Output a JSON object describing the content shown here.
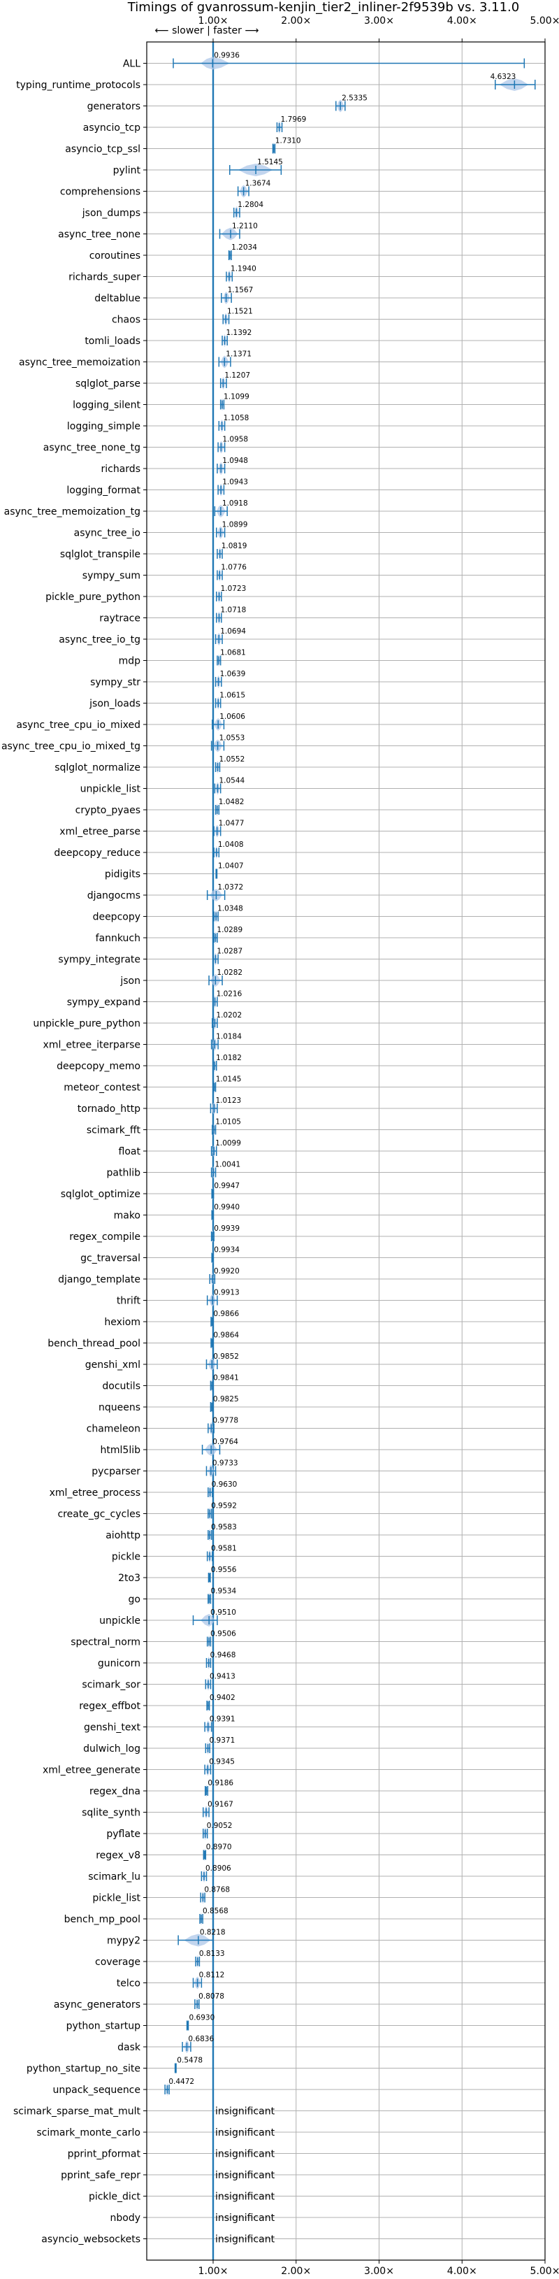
{
  "chart_data": {
    "type": "scatter",
    "title": "Timings of gvanrossum-kenjin_tier2_inliner-2f9539b vs. 3.11.0",
    "direction_label": "⟵ slower  |  faster ⟶",
    "x_ticks": [
      "1.00×",
      "2.00×",
      "3.00×",
      "4.00×",
      "5.00×"
    ],
    "xlim": [
      0.2,
      5.0
    ],
    "reference_line": 1.0,
    "grid": true,
    "colors": {
      "line": "#1f77b4",
      "violin": "#aec7e8",
      "grid": "#b0b0b0"
    },
    "insignificant_label": "insignificant",
    "benchmarks": [
      {
        "name": "ALL",
        "value": 0.9936,
        "label": "0.9936",
        "lo": 0.52,
        "hi": 4.75,
        "vlo": 0.85,
        "vhi": 1.2
      },
      {
        "name": "typing_runtime_protocols",
        "value": 4.6323,
        "label": "4.6323",
        "lo": 4.4,
        "hi": 4.88,
        "vlo": 4.45,
        "vhi": 4.8
      },
      {
        "name": "generators",
        "value": 2.5335,
        "label": "2.5335",
        "lo": 2.48,
        "hi": 2.59,
        "vlo": 2.49,
        "vhi": 2.58
      },
      {
        "name": "asyncio_tcp",
        "value": 1.7969,
        "label": "1.7969",
        "lo": 1.77,
        "hi": 1.83,
        "vlo": 1.78,
        "vhi": 1.82
      },
      {
        "name": "asyncio_tcp_ssl",
        "value": 1.731,
        "label": "1.7310",
        "lo": 1.72,
        "hi": 1.745,
        "vlo": 1.722,
        "vhi": 1.74
      },
      {
        "name": "pylint",
        "value": 1.5145,
        "label": "1.5145",
        "lo": 1.2,
        "hi": 1.82,
        "vlo": 1.3,
        "vhi": 1.72
      },
      {
        "name": "comprehensions",
        "value": 1.3674,
        "label": "1.3674",
        "lo": 1.3,
        "hi": 1.43,
        "vlo": 1.32,
        "vhi": 1.42
      },
      {
        "name": "json_dumps",
        "value": 1.2804,
        "label": "1.2804",
        "lo": 1.25,
        "hi": 1.32,
        "vlo": 1.26,
        "vhi": 1.31
      },
      {
        "name": "async_tree_none",
        "value": 1.211,
        "label": "1.2110",
        "lo": 1.08,
        "hi": 1.32,
        "vlo": 1.1,
        "vhi": 1.3
      },
      {
        "name": "coroutines",
        "value": 1.2034,
        "label": "1.2034",
        "lo": 1.19,
        "hi": 1.22,
        "vlo": 1.195,
        "vhi": 1.215
      },
      {
        "name": "richards_super",
        "value": 1.194,
        "label": "1.1940",
        "lo": 1.16,
        "hi": 1.23,
        "vlo": 1.17,
        "vhi": 1.22
      },
      {
        "name": "deltablue",
        "value": 1.1567,
        "label": "1.1567",
        "lo": 1.1,
        "hi": 1.22,
        "vlo": 1.12,
        "vhi": 1.2
      },
      {
        "name": "chaos",
        "value": 1.1521,
        "label": "1.1521",
        "lo": 1.12,
        "hi": 1.19,
        "vlo": 1.13,
        "vhi": 1.18
      },
      {
        "name": "tomli_loads",
        "value": 1.1392,
        "label": "1.1392",
        "lo": 1.11,
        "hi": 1.17,
        "vlo": 1.12,
        "vhi": 1.16
      },
      {
        "name": "async_tree_memoization",
        "value": 1.1371,
        "label": "1.1371",
        "lo": 1.07,
        "hi": 1.21,
        "vlo": 1.09,
        "vhi": 1.19
      },
      {
        "name": "sqlglot_parse",
        "value": 1.1207,
        "label": "1.1207",
        "lo": 1.09,
        "hi": 1.16,
        "vlo": 1.1,
        "vhi": 1.15
      },
      {
        "name": "logging_silent",
        "value": 1.1099,
        "label": "1.1099",
        "lo": 1.09,
        "hi": 1.13,
        "vlo": 1.095,
        "vhi": 1.125
      },
      {
        "name": "logging_simple",
        "value": 1.1058,
        "label": "1.1058",
        "lo": 1.07,
        "hi": 1.14,
        "vlo": 1.08,
        "vhi": 1.13
      },
      {
        "name": "async_tree_none_tg",
        "value": 1.0958,
        "label": "1.0958",
        "lo": 1.06,
        "hi": 1.14,
        "vlo": 1.07,
        "vhi": 1.13
      },
      {
        "name": "richards",
        "value": 1.0948,
        "label": "1.0948",
        "lo": 1.05,
        "hi": 1.14,
        "vlo": 1.06,
        "vhi": 1.13
      },
      {
        "name": "logging_format",
        "value": 1.0943,
        "label": "1.0943",
        "lo": 1.06,
        "hi": 1.13,
        "vlo": 1.07,
        "vhi": 1.12
      },
      {
        "name": "async_tree_memoization_tg",
        "value": 1.0918,
        "label": "1.0918",
        "lo": 1.02,
        "hi": 1.17,
        "vlo": 1.04,
        "vhi": 1.15
      },
      {
        "name": "async_tree_io",
        "value": 1.0899,
        "label": "1.0899",
        "lo": 1.04,
        "hi": 1.14,
        "vlo": 1.05,
        "vhi": 1.13
      },
      {
        "name": "sqlglot_transpile",
        "value": 1.0819,
        "label": "1.0819",
        "lo": 1.05,
        "hi": 1.11,
        "vlo": 1.06,
        "vhi": 1.1
      },
      {
        "name": "sympy_sum",
        "value": 1.0776,
        "label": "1.0776",
        "lo": 1.05,
        "hi": 1.11,
        "vlo": 1.06,
        "vhi": 1.1
      },
      {
        "name": "pickle_pure_python",
        "value": 1.0723,
        "label": "1.0723",
        "lo": 1.04,
        "hi": 1.1,
        "vlo": 1.05,
        "vhi": 1.09
      },
      {
        "name": "raytrace",
        "value": 1.0718,
        "label": "1.0718",
        "lo": 1.04,
        "hi": 1.1,
        "vlo": 1.05,
        "vhi": 1.09
      },
      {
        "name": "async_tree_io_tg",
        "value": 1.0694,
        "label": "1.0694",
        "lo": 1.03,
        "hi": 1.11,
        "vlo": 1.04,
        "vhi": 1.1
      },
      {
        "name": "mdp",
        "value": 1.0681,
        "label": "1.0681",
        "lo": 1.05,
        "hi": 1.09,
        "vlo": 1.055,
        "vhi": 1.085
      },
      {
        "name": "sympy_str",
        "value": 1.0639,
        "label": "1.0639",
        "lo": 1.03,
        "hi": 1.1,
        "vlo": 1.04,
        "vhi": 1.09
      },
      {
        "name": "json_loads",
        "value": 1.0615,
        "label": "1.0615",
        "lo": 1.03,
        "hi": 1.09,
        "vlo": 1.04,
        "vhi": 1.08
      },
      {
        "name": "async_tree_cpu_io_mixed",
        "value": 1.0606,
        "label": "1.0606",
        "lo": 0.99,
        "hi": 1.13,
        "vlo": 1.01,
        "vhi": 1.11
      },
      {
        "name": "async_tree_cpu_io_mixed_tg",
        "value": 1.0553,
        "label": "1.0553",
        "lo": 0.98,
        "hi": 1.13,
        "vlo": 1.0,
        "vhi": 1.11
      },
      {
        "name": "sqlglot_normalize",
        "value": 1.0552,
        "label": "1.0552",
        "lo": 1.03,
        "hi": 1.08,
        "vlo": 1.035,
        "vhi": 1.075
      },
      {
        "name": "unpickle_list",
        "value": 1.0544,
        "label": "1.0544",
        "lo": 1.02,
        "hi": 1.09,
        "vlo": 1.03,
        "vhi": 1.08
      },
      {
        "name": "crypto_pyaes",
        "value": 1.0482,
        "label": "1.0482",
        "lo": 1.03,
        "hi": 1.07,
        "vlo": 1.035,
        "vhi": 1.065
      },
      {
        "name": "xml_etree_parse",
        "value": 1.0477,
        "label": "1.0477",
        "lo": 1.01,
        "hi": 1.09,
        "vlo": 1.02,
        "vhi": 1.08
      },
      {
        "name": "deepcopy_reduce",
        "value": 1.0408,
        "label": "1.0408",
        "lo": 1.01,
        "hi": 1.07,
        "vlo": 1.02,
        "vhi": 1.06
      },
      {
        "name": "pidigits",
        "value": 1.0407,
        "label": "1.0407",
        "lo": 1.035,
        "hi": 1.046,
        "vlo": 1.037,
        "vhi": 1.044
      },
      {
        "name": "djangocms",
        "value": 1.0372,
        "label": "1.0372",
        "lo": 0.93,
        "hi": 1.14,
        "vlo": 0.96,
        "vhi": 1.11
      },
      {
        "name": "deepcopy",
        "value": 1.0348,
        "label": "1.0348",
        "lo": 1.01,
        "hi": 1.06,
        "vlo": 1.015,
        "vhi": 1.055
      },
      {
        "name": "fannkuch",
        "value": 1.0289,
        "label": "1.0289",
        "lo": 1.01,
        "hi": 1.05,
        "vlo": 1.015,
        "vhi": 1.045
      },
      {
        "name": "sympy_integrate",
        "value": 1.0287,
        "label": "1.0287",
        "lo": 1.0,
        "hi": 1.06,
        "vlo": 1.01,
        "vhi": 1.05
      },
      {
        "name": "json",
        "value": 1.0282,
        "label": "1.0282",
        "lo": 0.95,
        "hi": 1.11,
        "vlo": 0.97,
        "vhi": 1.09
      },
      {
        "name": "sympy_expand",
        "value": 1.0216,
        "label": "1.0216",
        "lo": 1.0,
        "hi": 1.05,
        "vlo": 1.005,
        "vhi": 1.04
      },
      {
        "name": "unpickle_pure_python",
        "value": 1.0202,
        "label": "1.0202",
        "lo": 0.99,
        "hi": 1.05,
        "vlo": 1.0,
        "vhi": 1.04
      },
      {
        "name": "xml_etree_iterparse",
        "value": 1.0184,
        "label": "1.0184",
        "lo": 0.98,
        "hi": 1.06,
        "vlo": 0.99,
        "vhi": 1.05
      },
      {
        "name": "deepcopy_memo",
        "value": 1.0182,
        "label": "1.0182",
        "lo": 1.0,
        "hi": 1.04,
        "vlo": 1.005,
        "vhi": 1.035
      },
      {
        "name": "meteor_contest",
        "value": 1.0145,
        "label": "1.0145",
        "lo": 1.0,
        "hi": 1.03,
        "vlo": 1.005,
        "vhi": 1.025
      },
      {
        "name": "tornado_http",
        "value": 1.0123,
        "label": "1.0123",
        "lo": 0.97,
        "hi": 1.05,
        "vlo": 0.98,
        "vhi": 1.04
      },
      {
        "name": "scimark_fft",
        "value": 1.0105,
        "label": "1.0105",
        "lo": 0.99,
        "hi": 1.03,
        "vlo": 0.995,
        "vhi": 1.025
      },
      {
        "name": "float",
        "value": 1.0099,
        "label": "1.0099",
        "lo": 0.98,
        "hi": 1.04,
        "vlo": 0.99,
        "vhi": 1.03
      },
      {
        "name": "pathlib",
        "value": 1.0041,
        "label": "1.0041",
        "lo": 0.98,
        "hi": 1.03,
        "vlo": 0.99,
        "vhi": 1.02
      },
      {
        "name": "sqlglot_optimize",
        "value": 0.9947,
        "label": "0.9947",
        "lo": 0.985,
        "hi": 1.005,
        "vlo": 0.988,
        "vhi": 1.002
      },
      {
        "name": "mako",
        "value": 0.994,
        "label": "0.9940",
        "lo": 0.985,
        "hi": 1.003,
        "vlo": 0.988,
        "vhi": 1.0
      },
      {
        "name": "regex_compile",
        "value": 0.9939,
        "label": "0.9939",
        "lo": 0.98,
        "hi": 1.01,
        "vlo": 0.985,
        "vhi": 1.005
      },
      {
        "name": "gc_traversal",
        "value": 0.9934,
        "label": "0.9934",
        "lo": 0.985,
        "hi": 1.002,
        "vlo": 0.988,
        "vhi": 1.0
      },
      {
        "name": "django_template",
        "value": 0.992,
        "label": "0.9920",
        "lo": 0.96,
        "hi": 1.02,
        "vlo": 0.97,
        "vhi": 1.01
      },
      {
        "name": "thrift",
        "value": 0.9913,
        "label": "0.9913",
        "lo": 0.93,
        "hi": 1.05,
        "vlo": 0.95,
        "vhi": 1.03
      },
      {
        "name": "hexiom",
        "value": 0.9866,
        "label": "0.9866",
        "lo": 0.975,
        "hi": 1.0,
        "vlo": 0.98,
        "vhi": 0.995
      },
      {
        "name": "bench_thread_pool",
        "value": 0.9864,
        "label": "0.9864",
        "lo": 0.975,
        "hi": 0.998,
        "vlo": 0.978,
        "vhi": 0.995
      },
      {
        "name": "genshi_xml",
        "value": 0.9852,
        "label": "0.9852",
        "lo": 0.92,
        "hi": 1.05,
        "vlo": 0.94,
        "vhi": 1.03
      },
      {
        "name": "docutils",
        "value": 0.9841,
        "label": "0.9841",
        "lo": 0.97,
        "hi": 1.0,
        "vlo": 0.975,
        "vhi": 0.995
      },
      {
        "name": "nqueens",
        "value": 0.9825,
        "label": "0.9825",
        "lo": 0.97,
        "hi": 0.995,
        "vlo": 0.974,
        "vhi": 0.991
      },
      {
        "name": "chameleon",
        "value": 0.9778,
        "label": "0.9778",
        "lo": 0.94,
        "hi": 1.01,
        "vlo": 0.95,
        "vhi": 1.0
      },
      {
        "name": "html5lib",
        "value": 0.9764,
        "label": "0.9764",
        "lo": 0.87,
        "hi": 1.08,
        "vlo": 0.9,
        "vhi": 1.05
      },
      {
        "name": "pycparser",
        "value": 0.9733,
        "label": "0.9733",
        "lo": 0.92,
        "hi": 1.03,
        "vlo": 0.94,
        "vhi": 1.01
      },
      {
        "name": "xml_etree_process",
        "value": 0.963,
        "label": "0.9630",
        "lo": 0.94,
        "hi": 0.99,
        "vlo": 0.945,
        "vhi": 0.98
      },
      {
        "name": "create_gc_cycles",
        "value": 0.9592,
        "label": "0.9592",
        "lo": 0.94,
        "hi": 0.98,
        "vlo": 0.945,
        "vhi": 0.975
      },
      {
        "name": "aiohttp",
        "value": 0.9583,
        "label": "0.9583",
        "lo": 0.94,
        "hi": 0.98,
        "vlo": 0.945,
        "vhi": 0.975
      },
      {
        "name": "pickle",
        "value": 0.9581,
        "label": "0.9581",
        "lo": 0.93,
        "hi": 0.99,
        "vlo": 0.94,
        "vhi": 0.98
      },
      {
        "name": "2to3",
        "value": 0.9556,
        "label": "0.9556",
        "lo": 0.945,
        "hi": 0.966,
        "vlo": 0.948,
        "vhi": 0.963
      },
      {
        "name": "go",
        "value": 0.9534,
        "label": "0.9534",
        "lo": 0.94,
        "hi": 0.97,
        "vlo": 0.945,
        "vhi": 0.965
      },
      {
        "name": "unpickle",
        "value": 0.951,
        "label": "0.9510",
        "lo": 0.76,
        "hi": 1.05,
        "vlo": 0.85,
        "vhi": 1.02
      },
      {
        "name": "spectral_norm",
        "value": 0.9506,
        "label": "0.9506",
        "lo": 0.93,
        "hi": 0.97,
        "vlo": 0.935,
        "vhi": 0.965
      },
      {
        "name": "gunicorn",
        "value": 0.9468,
        "label": "0.9468",
        "lo": 0.92,
        "hi": 0.97,
        "vlo": 0.93,
        "vhi": 0.965
      },
      {
        "name": "scimark_sor",
        "value": 0.9413,
        "label": "0.9413",
        "lo": 0.91,
        "hi": 0.97,
        "vlo": 0.92,
        "vhi": 0.96
      },
      {
        "name": "regex_effbot",
        "value": 0.9402,
        "label": "0.9402",
        "lo": 0.925,
        "hi": 0.955,
        "vlo": 0.93,
        "vhi": 0.95
      },
      {
        "name": "genshi_text",
        "value": 0.9391,
        "label": "0.9391",
        "lo": 0.9,
        "hi": 0.98,
        "vlo": 0.91,
        "vhi": 0.97
      },
      {
        "name": "dulwich_log",
        "value": 0.9371,
        "label": "0.9371",
        "lo": 0.91,
        "hi": 0.96,
        "vlo": 0.92,
        "vhi": 0.955
      },
      {
        "name": "xml_etree_generate",
        "value": 0.9345,
        "label": "0.9345",
        "lo": 0.9,
        "hi": 0.97,
        "vlo": 0.91,
        "vhi": 0.96
      },
      {
        "name": "regex_dna",
        "value": 0.9186,
        "label": "0.9186",
        "lo": 0.905,
        "hi": 0.935,
        "vlo": 0.91,
        "vhi": 0.93
      },
      {
        "name": "sqlite_synth",
        "value": 0.9167,
        "label": "0.9167",
        "lo": 0.88,
        "hi": 0.95,
        "vlo": 0.89,
        "vhi": 0.94
      },
      {
        "name": "pyflate",
        "value": 0.9052,
        "label": "0.9052",
        "lo": 0.88,
        "hi": 0.93,
        "vlo": 0.885,
        "vhi": 0.925
      },
      {
        "name": "regex_v8",
        "value": 0.897,
        "label": "0.8970",
        "lo": 0.885,
        "hi": 0.91,
        "vlo": 0.888,
        "vhi": 0.906
      },
      {
        "name": "scimark_lu",
        "value": 0.8906,
        "label": "0.8906",
        "lo": 0.86,
        "hi": 0.92,
        "vlo": 0.87,
        "vhi": 0.91
      },
      {
        "name": "pickle_list",
        "value": 0.8768,
        "label": "0.8768",
        "lo": 0.85,
        "hi": 0.9,
        "vlo": 0.86,
        "vhi": 0.895
      },
      {
        "name": "bench_mp_pool",
        "value": 0.8568,
        "label": "0.8568",
        "lo": 0.84,
        "hi": 0.875,
        "vlo": 0.845,
        "vhi": 0.87
      },
      {
        "name": "mypy2",
        "value": 0.8218,
        "label": "0.8218",
        "lo": 0.58,
        "hi": 1.0,
        "vlo": 0.65,
        "vhi": 0.97
      },
      {
        "name": "coverage",
        "value": 0.8133,
        "label": "0.8133",
        "lo": 0.79,
        "hi": 0.835,
        "vlo": 0.795,
        "vhi": 0.83
      },
      {
        "name": "telco",
        "value": 0.8112,
        "label": "0.8112",
        "lo": 0.76,
        "hi": 0.86,
        "vlo": 0.77,
        "vhi": 0.85
      },
      {
        "name": "async_generators",
        "value": 0.8078,
        "label": "0.8078",
        "lo": 0.78,
        "hi": 0.83,
        "vlo": 0.79,
        "vhi": 0.825
      },
      {
        "name": "python_startup",
        "value": 0.693,
        "label": "0.6930",
        "lo": 0.685,
        "hi": 0.701,
        "vlo": 0.688,
        "vhi": 0.698
      },
      {
        "name": "dask",
        "value": 0.6836,
        "label": "0.6836",
        "lo": 0.63,
        "hi": 0.73,
        "vlo": 0.65,
        "vhi": 0.72
      },
      {
        "name": "python_startup_no_site",
        "value": 0.5478,
        "label": "0.5478",
        "lo": 0.542,
        "hi": 0.554,
        "vlo": 0.544,
        "vhi": 0.552
      },
      {
        "name": "unpack_sequence",
        "value": 0.4472,
        "label": "0.4472",
        "lo": 0.42,
        "hi": 0.47,
        "vlo": 0.43,
        "vhi": 0.465
      },
      {
        "name": "scimark_sparse_mat_mult",
        "value": null,
        "label": ""
      },
      {
        "name": "scimark_monte_carlo",
        "value": null,
        "label": ""
      },
      {
        "name": "pprint_pformat",
        "value": null,
        "label": ""
      },
      {
        "name": "pprint_safe_repr",
        "value": null,
        "label": ""
      },
      {
        "name": "pickle_dict",
        "value": null,
        "label": ""
      },
      {
        "name": "nbody",
        "value": null,
        "label": ""
      },
      {
        "name": "asyncio_websockets",
        "value": null,
        "label": ""
      }
    ]
  }
}
